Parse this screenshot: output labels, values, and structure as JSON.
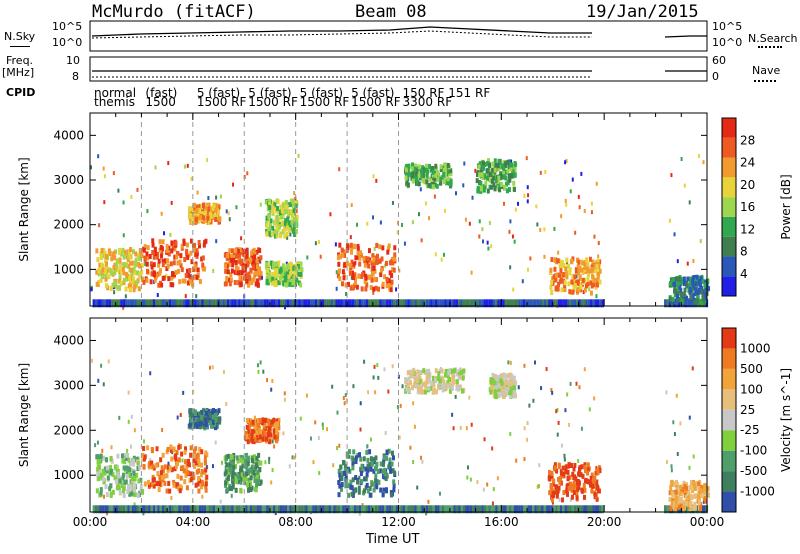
{
  "header": {
    "station": "McMurdo (fitACF)",
    "beam": "Beam 08",
    "date": "19/Jan/2015"
  },
  "side_labels": {
    "nsky": "N.Sky",
    "freq_line1": "Freq.",
    "freq_line2": "[MHz]",
    "cpid": "CPID",
    "nsearch": "N.Search",
    "nave": "Nave"
  },
  "noise_axis": {
    "left_top": "10^5",
    "left_bottom": "10^0",
    "right_top": "10^5",
    "right_bottom": "10^0"
  },
  "freq_axis": {
    "left_top": "10",
    "left_bottom": "8",
    "right_top": "60",
    "right_bottom": "0"
  },
  "cpid_labels": [
    {
      "hour": 0.0,
      "line1": "normal",
      "line2": "themis"
    },
    {
      "hour": 2.0,
      "line1": "(fast)",
      "line2": "1500"
    },
    {
      "hour": 4.0,
      "line1": "5 (fast)",
      "line2": "1500 RF"
    },
    {
      "hour": 6.0,
      "line1": "5 (fast)",
      "line2": "1500 RF"
    },
    {
      "hour": 8.0,
      "line1": "5 (fast)",
      "line2": "1500 RF"
    },
    {
      "hour": 10.0,
      "line1": "5 (fast)",
      "line2": "1500 RF"
    },
    {
      "hour": 12.0,
      "line1": "150 RF 151 RF",
      "line2": "3300 RF"
    }
  ],
  "colors": {
    "power_scale": [
      "#1f1fe6",
      "#2a58b8",
      "#3f7f4f",
      "#2fa84f",
      "#9fd64f",
      "#e7d43a",
      "#f29a2e",
      "#ee5a22",
      "#e42a16"
    ],
    "velocity_scale": [
      "#2f4fa8",
      "#3f7f5f",
      "#4f9f6a",
      "#7fcf3f",
      "#c8c8c8",
      "#e6c07a",
      "#f2a33a",
      "#ee7a22",
      "#e43a16"
    ]
  },
  "chart_data": [
    {
      "type": "heatmap",
      "title": "Power",
      "xlabel": "",
      "ylabel": "Slant Range [km]",
      "x_ticks": [
        "00:00",
        "04:00",
        "08:00",
        "12:00",
        "16:00",
        "20:00",
        "00:00"
      ],
      "xlim_hours": [
        0,
        24
      ],
      "ylim": [
        180,
        4500
      ],
      "y_ticks": [
        1000,
        2000,
        3000,
        4000
      ],
      "colorbar": {
        "label": "Power [dB]",
        "ticks": [
          4,
          8,
          12,
          16,
          20,
          24,
          28
        ],
        "range": [
          0,
          30
        ]
      },
      "data_gaps_hours": [
        [
          19.9,
          22.3
        ]
      ],
      "regions": [
        {
          "t0": 0.2,
          "t1": 2.0,
          "r0": 600,
          "r1": 1500,
          "level": 5
        },
        {
          "t0": 2.0,
          "t1": 4.5,
          "r0": 700,
          "r1": 1700,
          "level": 7
        },
        {
          "t0": 3.8,
          "t1": 5.0,
          "r0": 2100,
          "r1": 2500,
          "level": 6
        },
        {
          "t0": 5.2,
          "t1": 6.6,
          "r0": 700,
          "r1": 1500,
          "level": 7
        },
        {
          "t0": 6.8,
          "t1": 8.2,
          "r0": 700,
          "r1": 1200,
          "level": 4
        },
        {
          "t0": 6.8,
          "t1": 8.0,
          "r0": 1800,
          "r1": 2600,
          "level": 4
        },
        {
          "t0": 9.6,
          "t1": 11.8,
          "r0": 600,
          "r1": 1600,
          "level": 7
        },
        {
          "t0": 12.2,
          "t1": 14.0,
          "r0": 2900,
          "r1": 3400,
          "level": 3
        },
        {
          "t0": 15.0,
          "t1": 16.5,
          "r0": 2800,
          "r1": 3500,
          "level": 3
        },
        {
          "t0": 17.8,
          "t1": 19.8,
          "r0": 500,
          "r1": 1300,
          "level": 6
        },
        {
          "t0": 22.5,
          "t1": 24.0,
          "r0": 300,
          "r1": 900,
          "level": 2
        }
      ]
    },
    {
      "type": "heatmap",
      "title": "Velocity",
      "xlabel": "Time UT",
      "ylabel": "Slant Range [km]",
      "x_ticks": [
        "00:00",
        "04:00",
        "08:00",
        "12:00",
        "16:00",
        "20:00",
        "00:00"
      ],
      "xlim_hours": [
        0,
        24
      ],
      "ylim": [
        180,
        4500
      ],
      "y_ticks": [
        1000,
        2000,
        3000,
        4000
      ],
      "colorbar": {
        "label": "Velocity [m s^-1]",
        "ticks": [
          "1000",
          "500",
          "100",
          "25",
          "-25",
          "-100",
          "-500",
          "-1000"
        ]
      },
      "data_gaps_hours": [
        [
          19.9,
          22.3
        ]
      ],
      "regions": [
        {
          "t0": 0.2,
          "t1": 2.0,
          "r0": 600,
          "r1": 1500,
          "level": 3
        },
        {
          "t0": 2.0,
          "t1": 4.5,
          "r0": 700,
          "r1": 1700,
          "level": 7
        },
        {
          "t0": 3.8,
          "t1": 5.0,
          "r0": 2100,
          "r1": 2500,
          "level": 1
        },
        {
          "t0": 5.2,
          "t1": 6.6,
          "r0": 700,
          "r1": 1500,
          "level": 2
        },
        {
          "t0": 6.0,
          "t1": 7.3,
          "r0": 1800,
          "r1": 2300,
          "level": 7
        },
        {
          "t0": 9.6,
          "t1": 11.8,
          "r0": 600,
          "r1": 1600,
          "level": 1
        },
        {
          "t0": 12.2,
          "t1": 14.5,
          "r0": 2900,
          "r1": 3400,
          "level": 4
        },
        {
          "t0": 15.5,
          "t1": 16.5,
          "r0": 2800,
          "r1": 3300,
          "level": 4
        },
        {
          "t0": 17.8,
          "t1": 19.8,
          "r0": 500,
          "r1": 1300,
          "level": 8
        },
        {
          "t0": 22.5,
          "t1": 24.0,
          "r0": 300,
          "r1": 900,
          "level": 6
        }
      ]
    }
  ]
}
